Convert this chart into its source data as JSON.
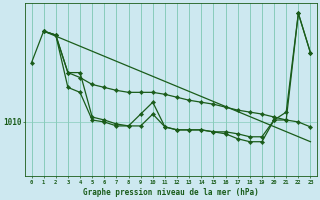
{
  "xlabel": "Graphe pression niveau de la mer (hPa)",
  "bg_color": "#cde8f0",
  "grid_color": "#88ccbb",
  "line_color": "#1a5c1a",
  "x_ticks": [
    0,
    1,
    2,
    3,
    4,
    5,
    6,
    7,
    8,
    9,
    10,
    11,
    12,
    13,
    14,
    15,
    16,
    17,
    18,
    19,
    20,
    21,
    22,
    23
  ],
  "ylim": [
    1004.5,
    1022
  ],
  "xlim": [
    -0.5,
    23.5
  ],
  "line1_x": [
    0,
    1,
    2,
    3,
    4,
    5,
    6,
    7,
    8,
    9,
    10,
    11,
    12,
    13,
    14,
    15,
    16,
    17,
    18,
    19,
    20,
    21,
    22,
    23
  ],
  "line1_y": [
    1016.0,
    1019.2,
    1018.8,
    1013.5,
    1013.0,
    1010.2,
    1010.0,
    1009.6,
    1009.6,
    1010.8,
    1012.0,
    1009.5,
    1009.2,
    1009.2,
    1009.2,
    1009.0,
    1009.0,
    1008.8,
    1008.5,
    1008.5,
    1010.2,
    1011.0,
    1021.0,
    1017.0
  ],
  "line2_x": [
    1,
    2,
    3,
    4,
    5,
    6,
    7,
    8,
    9,
    10,
    11,
    12,
    13,
    14,
    15,
    16,
    17,
    18,
    19,
    20,
    21,
    22,
    23
  ],
  "line2_y": [
    1019.2,
    1018.8,
    1015.0,
    1014.5,
    1013.8,
    1013.5,
    1013.2,
    1013.0,
    1013.0,
    1013.0,
    1012.8,
    1012.5,
    1012.2,
    1012.0,
    1011.8,
    1011.5,
    1011.2,
    1011.0,
    1010.8,
    1010.5,
    1010.2,
    1010.0,
    1009.5
  ],
  "line3_x": [
    1,
    23
  ],
  "line3_y": [
    1019.2,
    1008.0
  ],
  "line4_x": [
    1,
    2,
    3,
    4,
    5,
    6,
    7,
    8,
    9,
    10,
    11,
    12,
    13,
    14,
    15,
    16,
    17,
    18,
    19,
    20,
    21,
    22,
    23
  ],
  "line4_y": [
    1019.2,
    1018.8,
    1015.0,
    1015.0,
    1010.5,
    1010.2,
    1009.8,
    1009.6,
    1009.6,
    1010.8,
    1009.5,
    1009.2,
    1009.2,
    1009.2,
    1009.0,
    1008.8,
    1008.3,
    1008.0,
    1008.0,
    1010.2,
    1010.2,
    1021.0,
    1017.0
  ]
}
